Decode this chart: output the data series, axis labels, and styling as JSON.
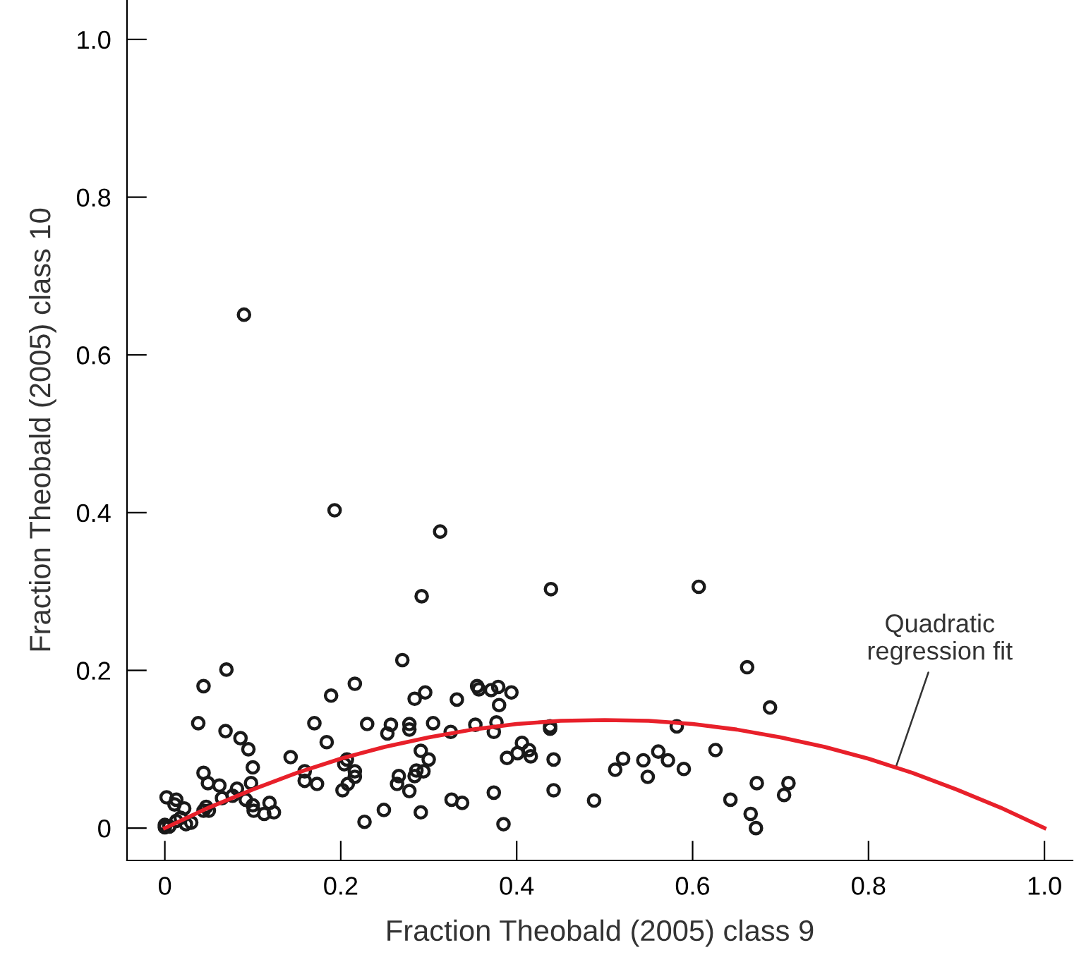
{
  "chart_data": {
    "type": "scatter",
    "xlabel": "Fraction Theobald (2005) class 9",
    "ylabel": "Fraction Theobald (2005) class 10",
    "xlim": [
      -0.043,
      1.032
    ],
    "ylim": [
      -0.041,
      1.05
    ],
    "xticks": [
      {
        "value": 0,
        "label": "0"
      },
      0.2,
      0.4,
      0.6,
      0.8,
      {
        "value": 1,
        "label": "1.0"
      }
    ],
    "yticks": [
      {
        "value": 0,
        "label": "0"
      },
      0.2,
      0.4,
      0.6,
      0.8,
      {
        "value": 1,
        "label": "1.0"
      }
    ],
    "grid": false,
    "legend": false,
    "marker": "circle",
    "annotations": [
      {
        "text": "Quadratic\nregression fit",
        "x": 0.831,
        "y": 0.077
      }
    ],
    "series": [
      {
        "color": "#1a1a1a",
        "x": [
          0.09,
          0.193,
          0.313,
          0.292,
          0.07,
          0.044,
          0.27,
          0.216,
          0.189,
          0.284,
          0.296,
          0.332,
          0.038,
          0.069,
          0.086,
          0.095,
          0.17,
          0.23,
          0.257,
          0.278,
          0.278,
          0.305,
          0.253,
          0.325,
          0.184,
          0.291,
          0.3,
          0.143,
          0.1,
          0.044,
          0.049,
          0.062,
          0.082,
          0.098,
          0.159,
          0.159,
          0.173,
          0.207,
          0.204,
          0.216,
          0.216,
          0.208,
          0.202,
          0.266,
          0.264,
          0.286,
          0.284,
          0.294,
          0.278,
          0.065,
          0.077,
          0.092,
          0.1,
          0.101,
          0.119,
          0.113,
          0.124,
          0.047,
          0.044,
          0.05,
          0.002,
          0.013,
          0.011,
          0.022,
          0.03,
          0.024,
          0.326,
          0.338,
          0.249,
          0.291,
          0.227,
          0.0,
          0.0,
          0.005,
          0.013,
          0.018,
          0.439,
          0.607,
          0.662,
          0.688,
          0.355,
          0.357,
          0.371,
          0.379,
          0.394,
          0.38,
          0.353,
          0.377,
          0.374,
          0.438,
          0.438,
          0.582,
          0.406,
          0.401,
          0.414,
          0.416,
          0.389,
          0.442,
          0.626,
          0.512,
          0.521,
          0.544,
          0.549,
          0.561,
          0.572,
          0.59,
          0.374,
          0.442,
          0.385,
          0.488,
          0.643,
          0.666,
          0.672,
          0.673,
          0.704,
          0.709
        ],
        "values": [
          0.651,
          0.403,
          0.376,
          0.294,
          0.201,
          0.18,
          0.213,
          0.183,
          0.168,
          0.164,
          0.172,
          0.163,
          0.133,
          0.123,
          0.114,
          0.1,
          0.133,
          0.132,
          0.131,
          0.132,
          0.125,
          0.133,
          0.12,
          0.122,
          0.109,
          0.098,
          0.087,
          0.09,
          0.077,
          0.07,
          0.057,
          0.054,
          0.05,
          0.057,
          0.072,
          0.06,
          0.056,
          0.087,
          0.081,
          0.072,
          0.065,
          0.056,
          0.048,
          0.066,
          0.056,
          0.073,
          0.066,
          0.072,
          0.047,
          0.038,
          0.041,
          0.036,
          0.029,
          0.022,
          0.032,
          0.018,
          0.02,
          0.027,
          0.022,
          0.022,
          0.039,
          0.036,
          0.03,
          0.025,
          0.007,
          0.005,
          0.036,
          0.032,
          0.023,
          0.02,
          0.008,
          0.004,
          0.001,
          0.002,
          0.009,
          0.013,
          0.303,
          0.306,
          0.204,
          0.153,
          0.18,
          0.176,
          0.175,
          0.179,
          0.172,
          0.156,
          0.131,
          0.134,
          0.122,
          0.129,
          0.126,
          0.129,
          0.108,
          0.095,
          0.099,
          0.091,
          0.089,
          0.087,
          0.099,
          0.074,
          0.088,
          0.086,
          0.065,
          0.097,
          0.086,
          0.075,
          0.045,
          0.048,
          0.005,
          0.035,
          0.036,
          0.018,
          0.0,
          0.057,
          0.042,
          0.057
        ]
      },
      {
        "type": "line",
        "color": "#e8202a",
        "marker": "none",
        "line_style": "solid",
        "x": [
          0,
          0.05,
          0.1,
          0.15,
          0.2,
          0.25,
          0.3,
          0.35,
          0.4,
          0.45,
          0.5,
          0.55,
          0.6,
          0.65,
          0.7,
          0.75,
          0.8,
          0.85,
          0.9,
          0.95,
          1.0
        ],
        "values": [
          0,
          0.026,
          0.049,
          0.07,
          0.088,
          0.103,
          0.115,
          0.125,
          0.132,
          0.136,
          0.137,
          0.136,
          0.132,
          0.125,
          0.115,
          0.103,
          0.088,
          0.07,
          0.049,
          0.026,
          0
        ]
      }
    ]
  }
}
